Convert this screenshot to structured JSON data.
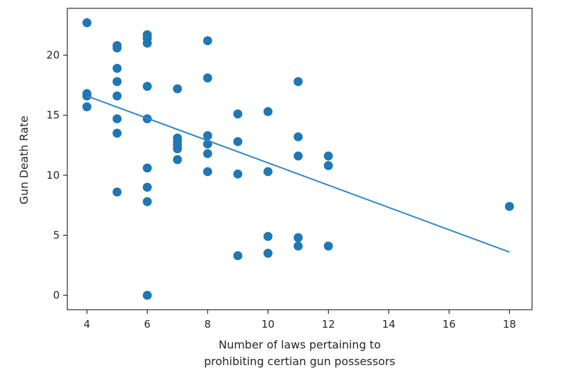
{
  "chart_data": {
    "type": "scatter",
    "title": "",
    "xlabel_lines": [
      "Number of laws pertaining to",
      "prohibiting certian gun possessors"
    ],
    "ylabel": "Gun Death Rate",
    "xlim": [
      3.35,
      18.75
    ],
    "ylim": [
      -1.2,
      23.9
    ],
    "xticks": [
      4,
      6,
      8,
      10,
      12,
      14,
      16,
      18
    ],
    "yticks": [
      0,
      5,
      10,
      15,
      20
    ],
    "grid": false,
    "marker_color": "#1f77b4",
    "line_color": "#2f86c7",
    "points": [
      {
        "x": 4,
        "y": 22.7
      },
      {
        "x": 4,
        "y": 16.8
      },
      {
        "x": 4,
        "y": 16.6
      },
      {
        "x": 4,
        "y": 15.7
      },
      {
        "x": 5,
        "y": 20.8
      },
      {
        "x": 5,
        "y": 20.6
      },
      {
        "x": 5,
        "y": 18.9
      },
      {
        "x": 5,
        "y": 17.8
      },
      {
        "x": 5,
        "y": 16.6
      },
      {
        "x": 5,
        "y": 14.7
      },
      {
        "x": 5,
        "y": 13.5
      },
      {
        "x": 5,
        "y": 8.6
      },
      {
        "x": 6,
        "y": 21.7
      },
      {
        "x": 6,
        "y": 21.4
      },
      {
        "x": 6,
        "y": 21.0
      },
      {
        "x": 6,
        "y": 17.4
      },
      {
        "x": 6,
        "y": 14.7
      },
      {
        "x": 6,
        "y": 10.6
      },
      {
        "x": 6,
        "y": 9.0
      },
      {
        "x": 6,
        "y": 7.8
      },
      {
        "x": 6,
        "y": 0.0
      },
      {
        "x": 7,
        "y": 17.2
      },
      {
        "x": 7,
        "y": 13.1
      },
      {
        "x": 7,
        "y": 12.8
      },
      {
        "x": 7,
        "y": 12.5
      },
      {
        "x": 7,
        "y": 12.2
      },
      {
        "x": 7,
        "y": 11.3
      },
      {
        "x": 8,
        "y": 21.2
      },
      {
        "x": 8,
        "y": 18.1
      },
      {
        "x": 8,
        "y": 13.3
      },
      {
        "x": 8,
        "y": 12.6
      },
      {
        "x": 8,
        "y": 11.8
      },
      {
        "x": 8,
        "y": 10.3
      },
      {
        "x": 9,
        "y": 15.1
      },
      {
        "x": 9,
        "y": 12.8
      },
      {
        "x": 9,
        "y": 10.1
      },
      {
        "x": 9,
        "y": 3.3
      },
      {
        "x": 10,
        "y": 15.3
      },
      {
        "x": 10,
        "y": 10.3
      },
      {
        "x": 10,
        "y": 4.9
      },
      {
        "x": 10,
        "y": 3.5
      },
      {
        "x": 11,
        "y": 17.8
      },
      {
        "x": 11,
        "y": 13.2
      },
      {
        "x": 11,
        "y": 11.6
      },
      {
        "x": 11,
        "y": 4.8
      },
      {
        "x": 11,
        "y": 4.1
      },
      {
        "x": 12,
        "y": 11.6
      },
      {
        "x": 12,
        "y": 10.8
      },
      {
        "x": 12,
        "y": 4.1
      },
      {
        "x": 18,
        "y": 7.4
      }
    ],
    "trendline": {
      "x": [
        4,
        18
      ],
      "y": [
        16.6,
        3.6
      ]
    }
  }
}
